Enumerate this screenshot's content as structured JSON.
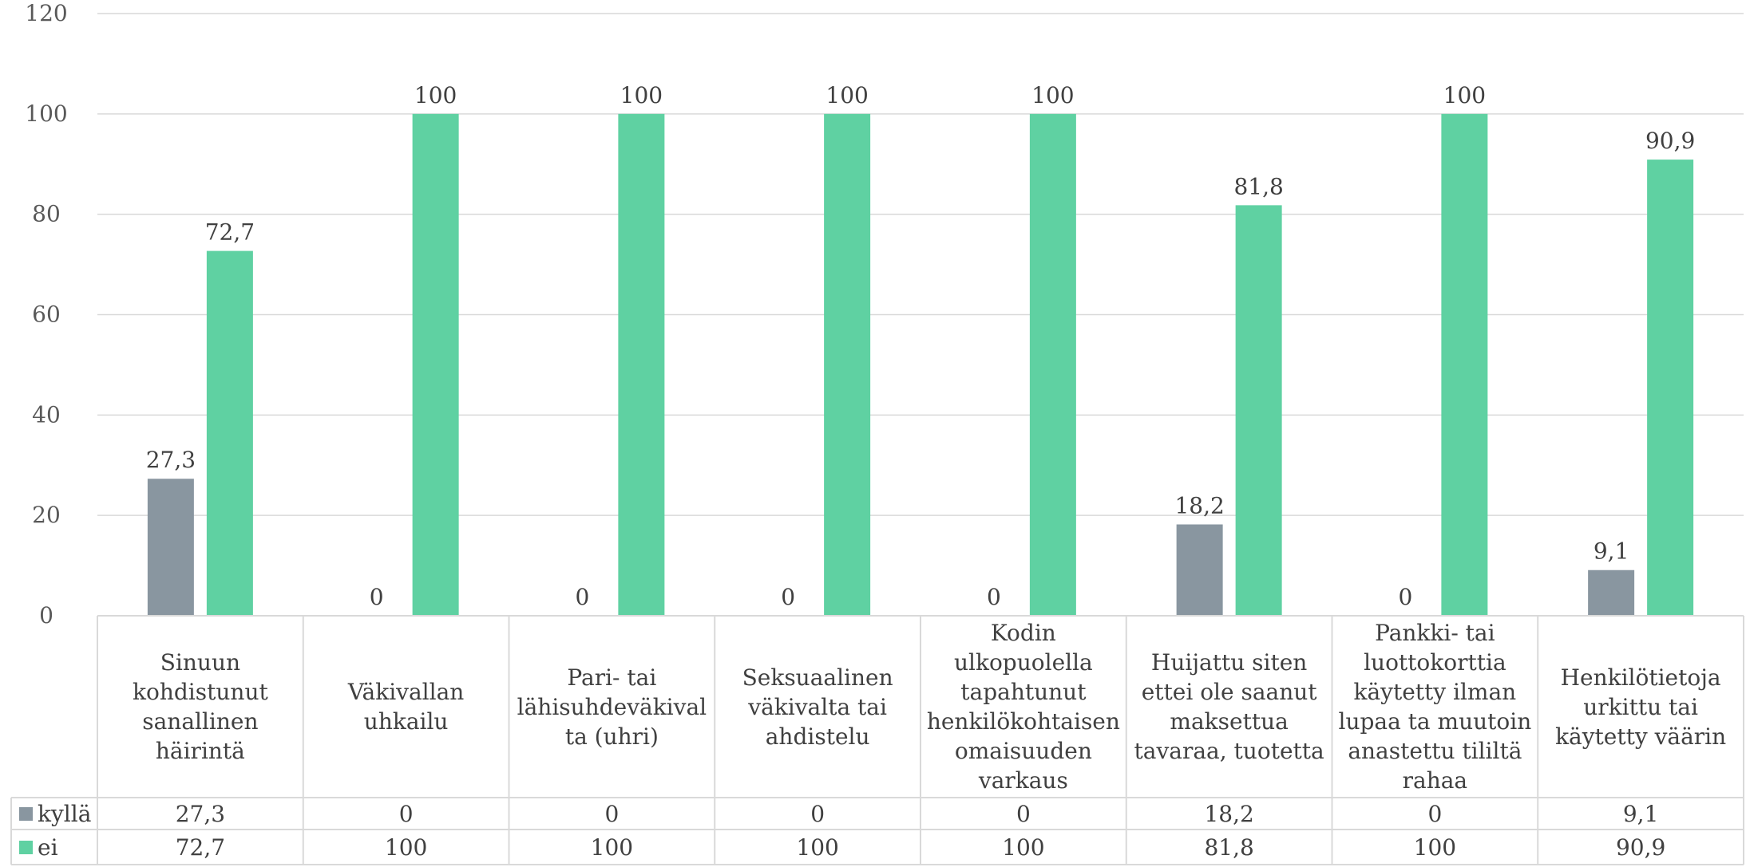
{
  "chart_data": {
    "type": "bar",
    "categories": [
      "Sinuun kohdistunut sanallinen häirintä",
      "Väkivallan uhkailu",
      "Pari- tai lähisuhdeväkivalta (uhri)",
      "Seksuaalinen väkivalta tai ahdistelu",
      "Kodin ulkopuolella tapahtunut henkilökohtaisen omaisuuden varkaus",
      "Huijattu siten ettei ole saanut maksettua tavaraa, tuotetta",
      "Pankki- tai luottokorttia käytetty ilman lupaa ta muutoin anastettu tililtä rahaa",
      "Henkilötietoja urkittu tai käytetty väärin"
    ],
    "category_lines": [
      [
        "Sinuun",
        "kohdistunut",
        "sanallinen",
        "häirintä"
      ],
      [
        "Väkivallan",
        "uhkailu"
      ],
      [
        "Pari- tai",
        "lähisuhdeväkival",
        "ta (uhri)"
      ],
      [
        "Seksuaalinen",
        "väkivalta tai",
        "ahdistelu"
      ],
      [
        "Kodin",
        "ulkopuolella",
        "tapahtunut",
        "henkilökohtaisen",
        "omaisuuden",
        "varkaus"
      ],
      [
        "Huijattu siten",
        "ettei ole saanut",
        "maksettua",
        "tavaraa, tuotetta"
      ],
      [
        "Pankki- tai",
        "luottokorttia",
        "käytetty ilman",
        "lupaa ta muutoin",
        "anastettu tililtä",
        "rahaa"
      ],
      [
        "Henkilötietoja",
        "urkittu tai",
        "käytetty väärin"
      ]
    ],
    "series": [
      {
        "name": "kyllä",
        "color": "#8996A0",
        "values": [
          27.3,
          0,
          0,
          0,
          0,
          18.2,
          0,
          9.1
        ],
        "labels": [
          "27,3",
          "0",
          "0",
          "0",
          "0",
          "18,2",
          "0",
          "9,1"
        ]
      },
      {
        "name": "ei",
        "color": "#5FD1A2",
        "values": [
          72.7,
          100,
          100,
          100,
          100,
          81.8,
          100,
          90.9
        ],
        "labels": [
          "72,7",
          "100",
          "100",
          "100",
          "100",
          "81,8",
          "100",
          "90,9"
        ]
      }
    ],
    "ylim": [
      0,
      120
    ],
    "yticks": [
      0,
      20,
      40,
      60,
      80,
      100,
      120
    ],
    "grid": true,
    "legend": "data-table"
  }
}
